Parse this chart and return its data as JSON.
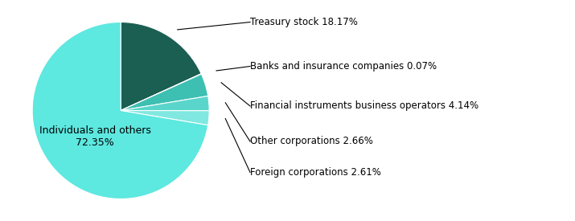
{
  "labels": [
    "Treasury stock",
    "Banks and insurance companies",
    "Financial instruments business operators",
    "Other corporations",
    "Foreign corporations",
    "Individuals and others"
  ],
  "values": [
    18.17,
    0.07,
    4.14,
    2.66,
    2.61,
    72.35
  ],
  "slice_colors": [
    "#1b5e52",
    "#2a9688",
    "#3dbfb2",
    "#5ad5cb",
    "#80e8e0",
    "#5de8e0"
  ],
  "annotation_texts": [
    "Treasury stock 18.17%",
    "Banks and insurance companies 0.07%",
    "Financial instruments business operators 4.14%",
    "Other corporations 2.66%",
    "Foreign corporations 2.61%"
  ],
  "center_label_line1": "Individuals and others",
  "center_label_line2": "72.35%",
  "figsize": [
    7.15,
    2.75
  ],
  "dpi": 100,
  "startangle": 90
}
